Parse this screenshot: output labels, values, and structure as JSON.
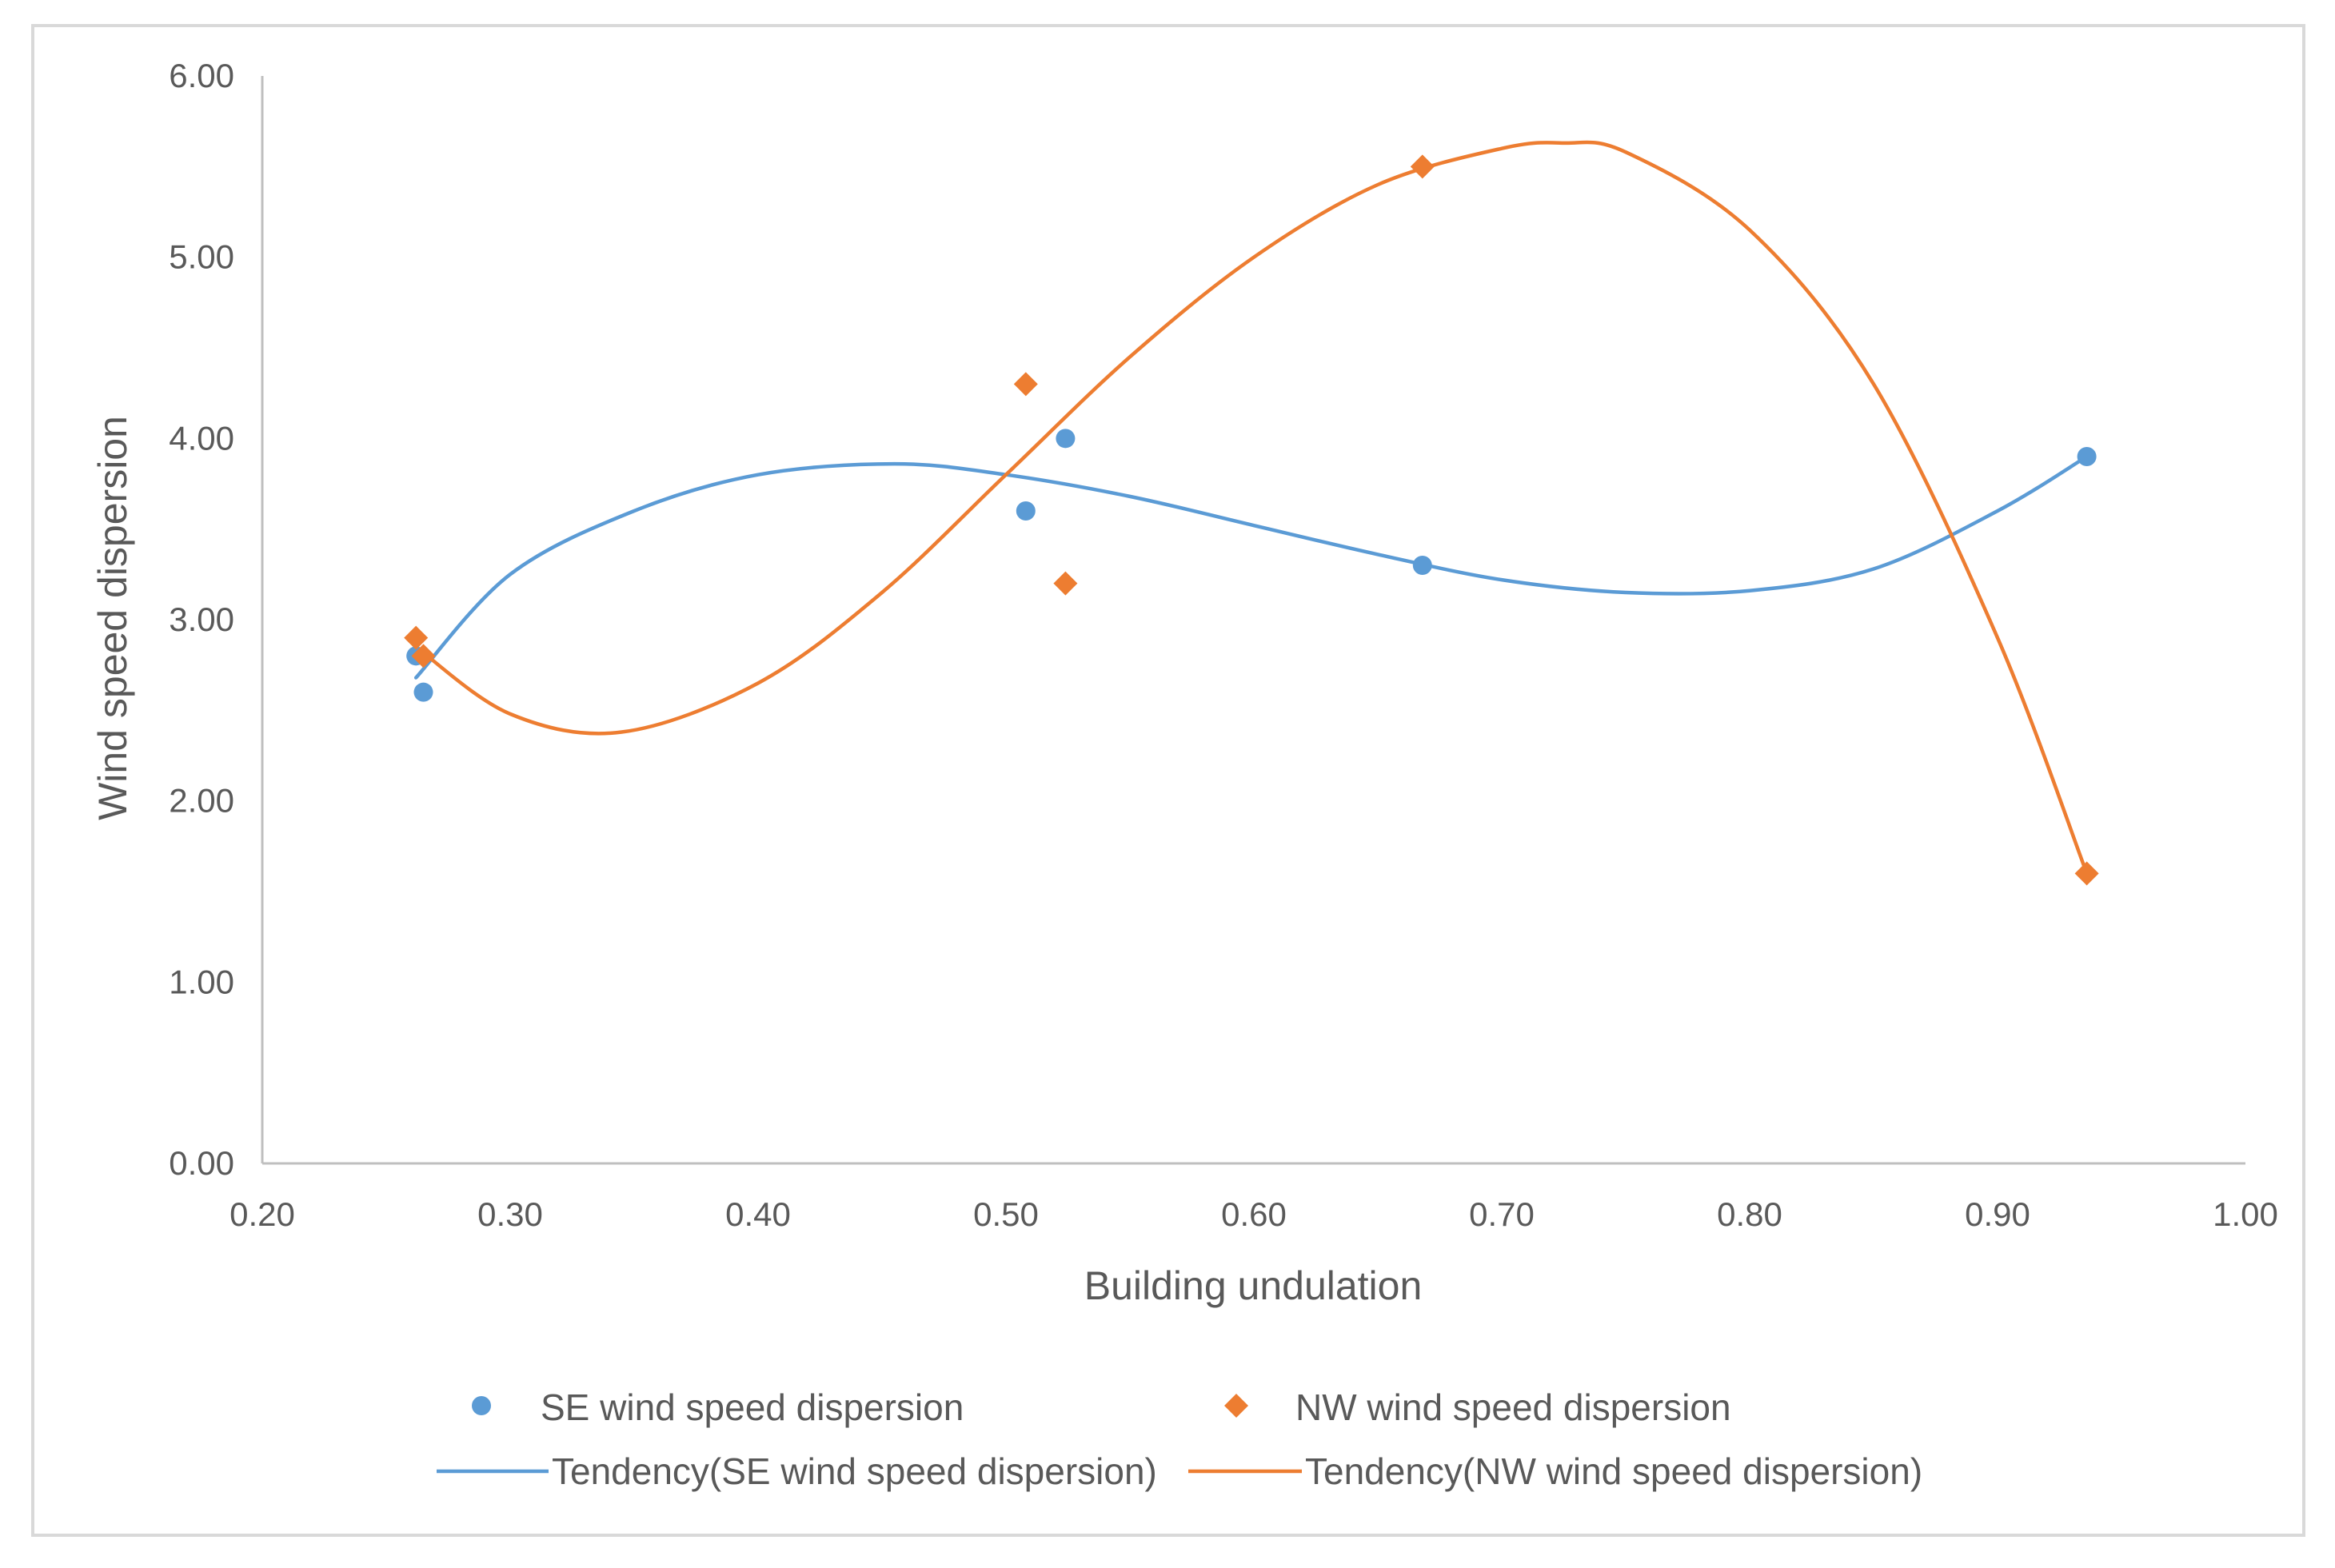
{
  "chart_data": {
    "type": "scatter",
    "title": "",
    "xlabel": "Building undulation",
    "ylabel": "Wind speed dispersion",
    "xlim": [
      0.2,
      1.0
    ],
    "ylim": [
      0.0,
      6.0
    ],
    "x_ticks": [
      "0.20",
      "0.30",
      "0.40",
      "0.50",
      "0.60",
      "0.70",
      "0.80",
      "0.90",
      "1.00"
    ],
    "y_ticks": [
      "0.00",
      "1.00",
      "2.00",
      "3.00",
      "4.00",
      "5.00",
      "6.00"
    ],
    "grid": false,
    "legend_position": "bottom",
    "series": [
      {
        "name": "SE wind speed dispersion",
        "kind": "points",
        "marker": "circle",
        "color": "#5B9BD5",
        "x": [
          0.262,
          0.265,
          0.508,
          0.524,
          0.668,
          0.936
        ],
        "y": [
          2.8,
          2.6,
          3.6,
          4.0,
          3.3,
          3.9
        ]
      },
      {
        "name": "NW wind speed dispersion",
        "kind": "points",
        "marker": "diamond",
        "color": "#ED7D31",
        "x": [
          0.262,
          0.265,
          0.508,
          0.524,
          0.668,
          0.936
        ],
        "y": [
          2.9,
          2.8,
          4.3,
          3.2,
          5.5,
          1.6
        ]
      },
      {
        "name": "Tendency(SE wind speed dispersion)",
        "kind": "trend",
        "color": "#5B9BD5",
        "x": [
          0.262,
          0.3,
          0.35,
          0.4,
          0.455,
          0.5,
          0.55,
          0.6,
          0.65,
          0.7,
          0.75,
          0.8,
          0.85,
          0.9,
          0.936
        ],
        "y": [
          2.68,
          3.25,
          3.6,
          3.8,
          3.86,
          3.8,
          3.68,
          3.52,
          3.36,
          3.22,
          3.15,
          3.16,
          3.28,
          3.6,
          3.9
        ]
      },
      {
        "name": "Tendency(NW wind speed dispersion)",
        "kind": "trend",
        "color": "#ED7D31",
        "x": [
          0.262,
          0.3,
          0.345,
          0.4,
          0.45,
          0.5,
          0.55,
          0.6,
          0.65,
          0.7,
          0.725,
          0.75,
          0.8,
          0.85,
          0.9,
          0.936
        ],
        "y": [
          2.85,
          2.48,
          2.38,
          2.65,
          3.15,
          3.8,
          4.45,
          5.0,
          5.4,
          5.6,
          5.63,
          5.58,
          5.15,
          4.3,
          2.9,
          1.6
        ]
      }
    ]
  }
}
